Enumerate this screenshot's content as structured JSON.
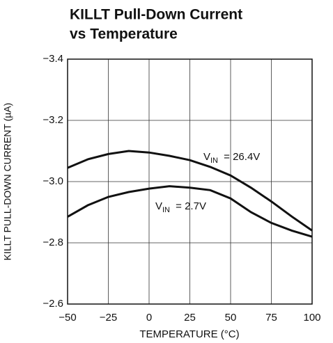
{
  "chart_data": {
    "type": "line",
    "title": [
      "KILLT Pull-Down Current",
      "vs Temperature"
    ],
    "x_label": "TEMPERATURE (°C)",
    "y_label": "KILLT PULL-DOWN CURRENT (µA)",
    "xlim": [
      -50,
      100
    ],
    "xticks": [
      {
        "value": -50,
        "label": "−50"
      },
      {
        "value": -25,
        "label": "−25"
      },
      0,
      25,
      50,
      75,
      100
    ],
    "ylim": [
      -2.6,
      -3.4
    ],
    "yticks": [
      {
        "value": -3.4,
        "label": "−3.4"
      },
      {
        "value": -3.2,
        "label": "−3.2"
      },
      {
        "value": -3.0,
        "label": "−3.0"
      },
      {
        "value": -2.8,
        "label": "−2.8"
      },
      {
        "value": -2.6,
        "label": "−2.6"
      }
    ],
    "grid": true,
    "series": [
      {
        "label": {
          "v": "V",
          "sub": "IN",
          "rest": " = 26.4V"
        },
        "color": "#111111",
        "x": [
          -50,
          -37.5,
          -25,
          -12.5,
          0,
          12.5,
          25,
          37.5,
          50,
          62.5,
          75,
          87.5,
          100
        ],
        "values": [
          -3.045,
          -3.073,
          -3.09,
          -3.1,
          -3.095,
          -3.084,
          -3.07,
          -3.048,
          -3.02,
          -2.98,
          -2.935,
          -2.886,
          -2.84
        ]
      },
      {
        "label": {
          "v": "V",
          "sub": "IN",
          "rest": " = 2.7V"
        },
        "color": "#111111",
        "x": [
          -50,
          -37.5,
          -25,
          -12.5,
          0,
          12.5,
          25,
          37.5,
          50,
          62.5,
          75,
          87.5,
          100
        ],
        "values": [
          -2.885,
          -2.923,
          -2.95,
          -2.966,
          -2.977,
          -2.985,
          -2.98,
          -2.972,
          -2.945,
          -2.9,
          -2.865,
          -2.84,
          -2.82
        ]
      }
    ]
  }
}
